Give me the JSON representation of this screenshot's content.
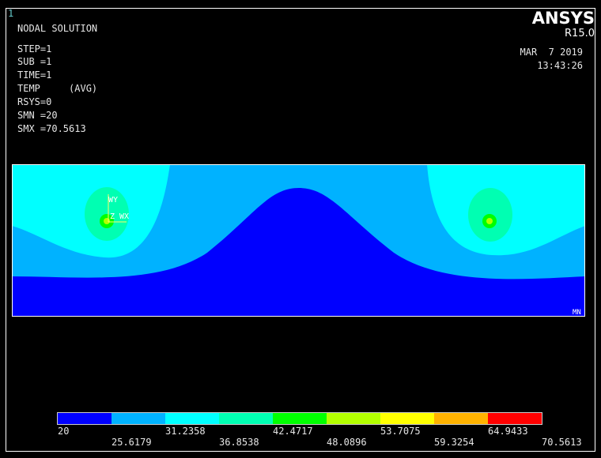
{
  "window": {
    "number": "1"
  },
  "info": {
    "lines": [
      "NODAL SOLUTION",
      "STEP=1",
      "SUB =1",
      "TIME=1",
      "TEMP     (AVG)",
      "RSYS=0",
      "SMN =20",
      "SMX =70.5613"
    ]
  },
  "brand": {
    "name": "ANSYS",
    "version": "R15.0",
    "date": "MAR  7 2019",
    "time": "13:43:26"
  },
  "model": {
    "triad_y": "WY",
    "triad_zx": "Z WX",
    "min_marker": "MN"
  },
  "legend": {
    "colors": [
      "#0000ff",
      "#00b2ff",
      "#00ffff",
      "#00ffb2",
      "#00ff00",
      "#b2ff00",
      "#ffff00",
      "#ffb200",
      "#ff0000"
    ],
    "labels": [
      "20",
      "25.6179",
      "31.2358",
      "36.8538",
      "42.4717",
      "48.0896",
      "53.7075",
      "59.3254",
      "64.9433",
      "70.5613"
    ]
  }
}
